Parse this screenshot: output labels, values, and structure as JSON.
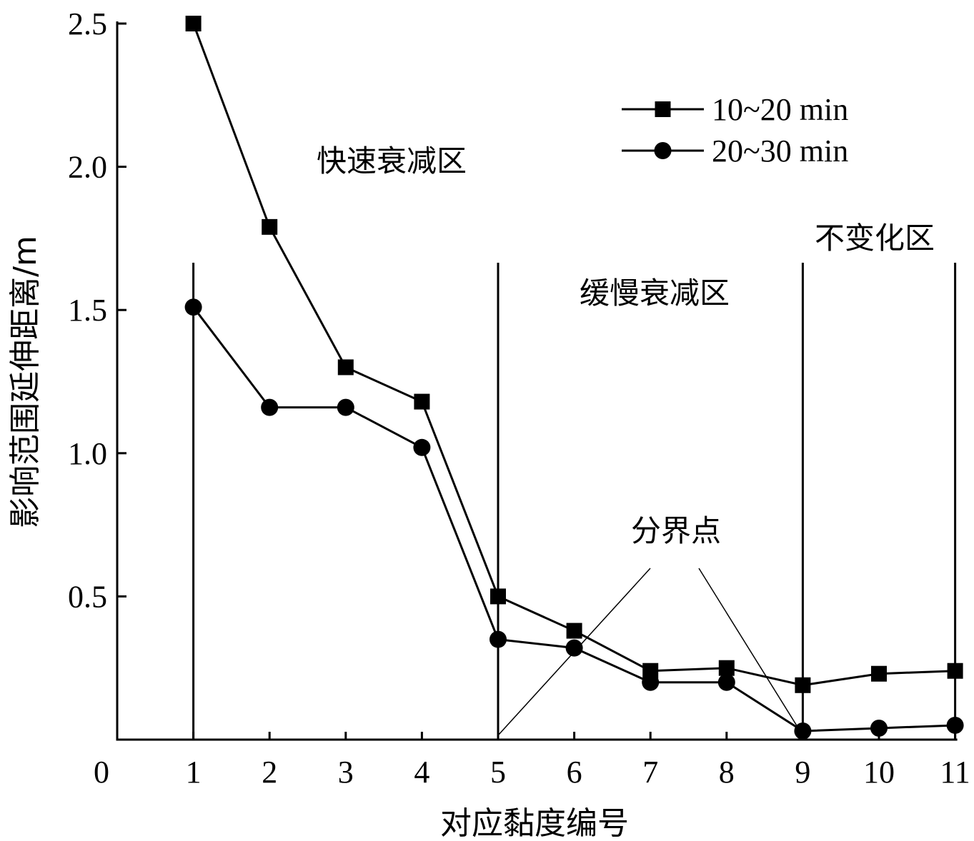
{
  "chart_data": {
    "type": "line",
    "title": "",
    "xlabel": "对应黏度编号",
    "ylabel": "影响范围延伸距离/m",
    "xlim": [
      0,
      11
    ],
    "ylim": [
      0,
      2.5
    ],
    "x_ticks": [
      "0",
      "1",
      "2",
      "3",
      "4",
      "5",
      "6",
      "7",
      "8",
      "9",
      "10",
      "11"
    ],
    "y_ticks": [
      "0.5",
      "1.0",
      "1.5",
      "2.0",
      "2.5"
    ],
    "x": [
      1,
      2,
      3,
      4,
      5,
      6,
      7,
      8,
      9,
      10,
      11
    ],
    "series": [
      {
        "name": "10~20 min",
        "marker": "square",
        "values": [
          2.5,
          1.79,
          1.3,
          1.18,
          0.5,
          0.38,
          0.24,
          0.25,
          0.19,
          0.23,
          0.24
        ]
      },
      {
        "name": "20~30 min",
        "marker": "circle",
        "values": [
          1.51,
          1.16,
          1.16,
          1.02,
          0.35,
          0.32,
          0.2,
          0.2,
          0.03,
          0.04,
          0.05
        ]
      }
    ],
    "region_dividers": [
      1,
      5,
      9,
      11
    ],
    "regions": [
      {
        "label": "快速衰减区"
      },
      {
        "label": "缓慢衰减区"
      },
      {
        "label": "不变化区"
      }
    ],
    "annotation": {
      "label": "分界点",
      "points_to_x": [
        5,
        9
      ]
    },
    "legend_position": "top-right",
    "grid": false
  }
}
